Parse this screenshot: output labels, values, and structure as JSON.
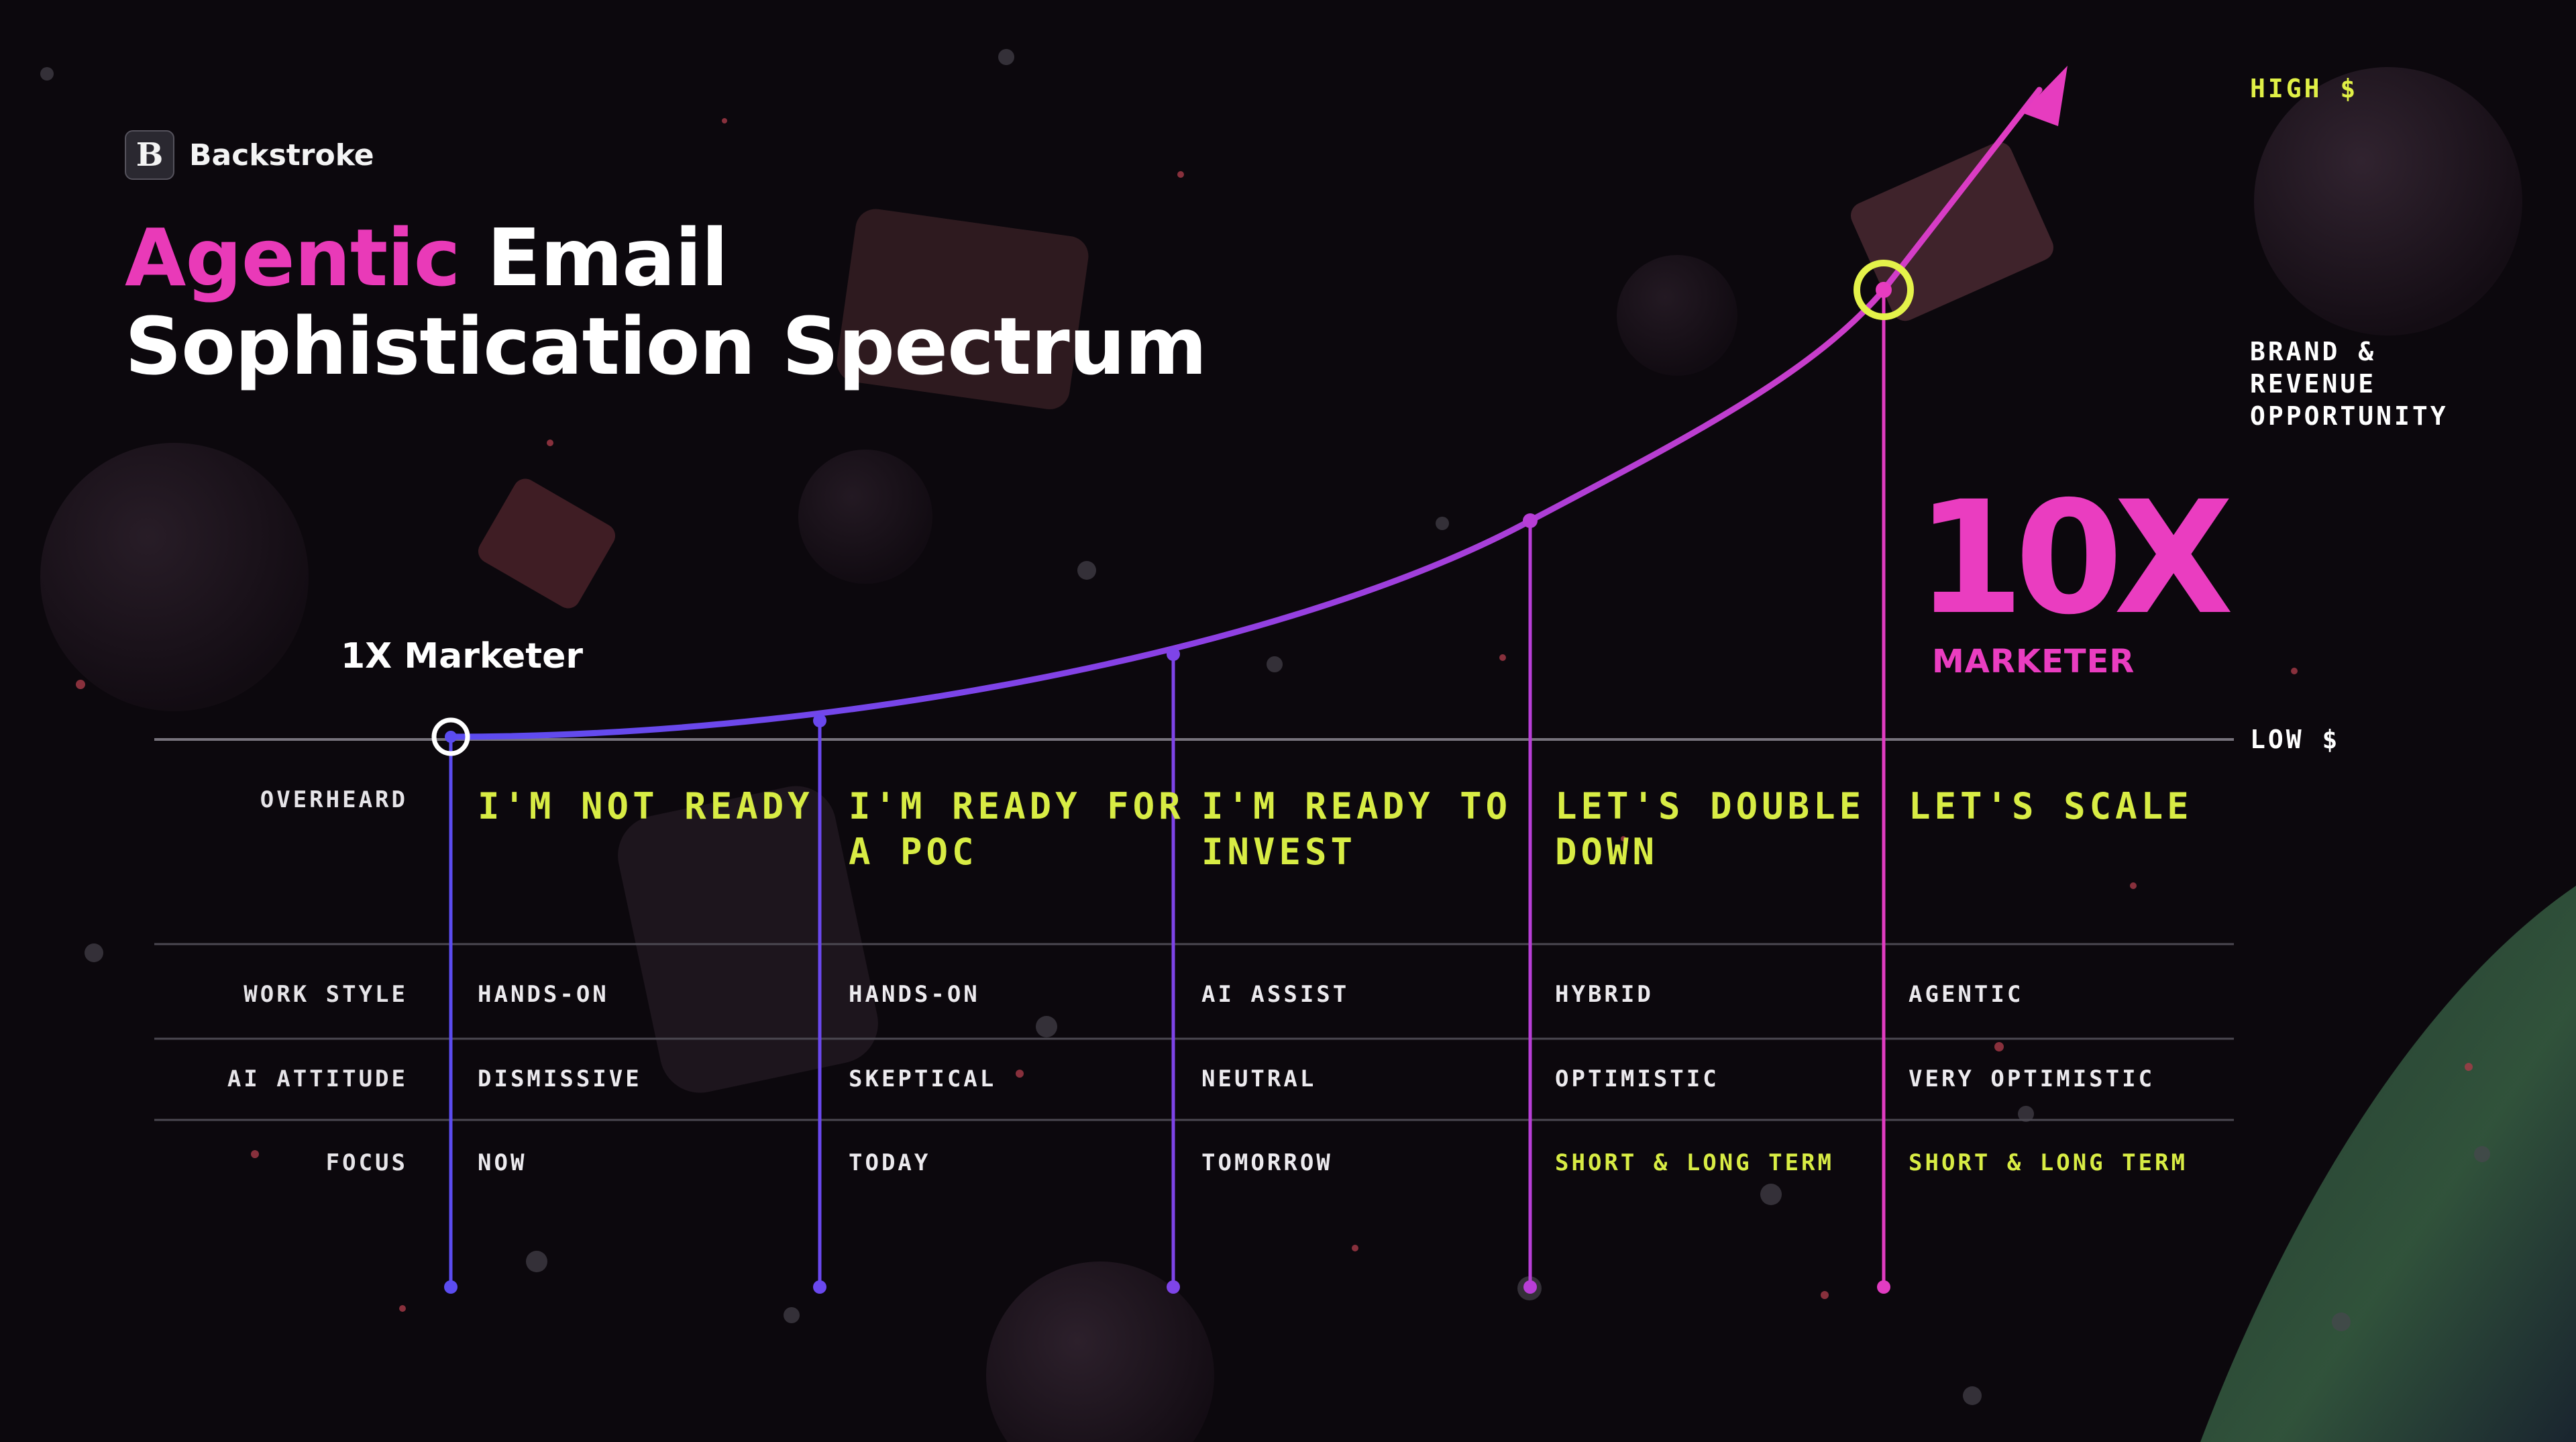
{
  "brand": {
    "name": "Backstroke",
    "logo_letter": "B"
  },
  "title": {
    "accent": "Agentic",
    "rest_line1": "Email",
    "line2": "Sophistication Spectrum"
  },
  "axis": {
    "high": "HIGH $",
    "low": "LOW $",
    "opportunity": "BRAND & REVENUE OPPORTUNITY"
  },
  "start_label": "1X Marketer",
  "end_label": {
    "big": "10X",
    "sub": "MARKETER"
  },
  "rows": {
    "overheard": "OVERHEARD",
    "work_style": "WORK STYLE",
    "ai_attitude": "AI ATTITUDE",
    "focus": "FOCUS"
  },
  "stages": [
    {
      "overheard": "I'M NOT READY",
      "work_style": "HANDS-ON",
      "ai_attitude": "DISMISSIVE",
      "focus": "NOW"
    },
    {
      "overheard": "I'M READY FOR A POC",
      "work_style": "HANDS-ON",
      "ai_attitude": "SKEPTICAL",
      "focus": "TODAY"
    },
    {
      "overheard": "I'M READY TO INVEST",
      "work_style": "AI ASSIST",
      "ai_attitude": "NEUTRAL",
      "focus": "TOMORROW"
    },
    {
      "overheard": "LET'S DOUBLE DOWN",
      "work_style": "HYBRID",
      "ai_attitude": "OPTIMISTIC",
      "focus": "SHORT & LONG TERM"
    },
    {
      "overheard": "LET'S SCALE",
      "work_style": "AGENTIC",
      "ai_attitude": "VERY OPTIMISTIC",
      "focus": "SHORT & LONG TERM"
    }
  ],
  "colors": {
    "pink": "#ea3dc0",
    "violet": "#6a4df0",
    "lime": "#e0f046"
  }
}
